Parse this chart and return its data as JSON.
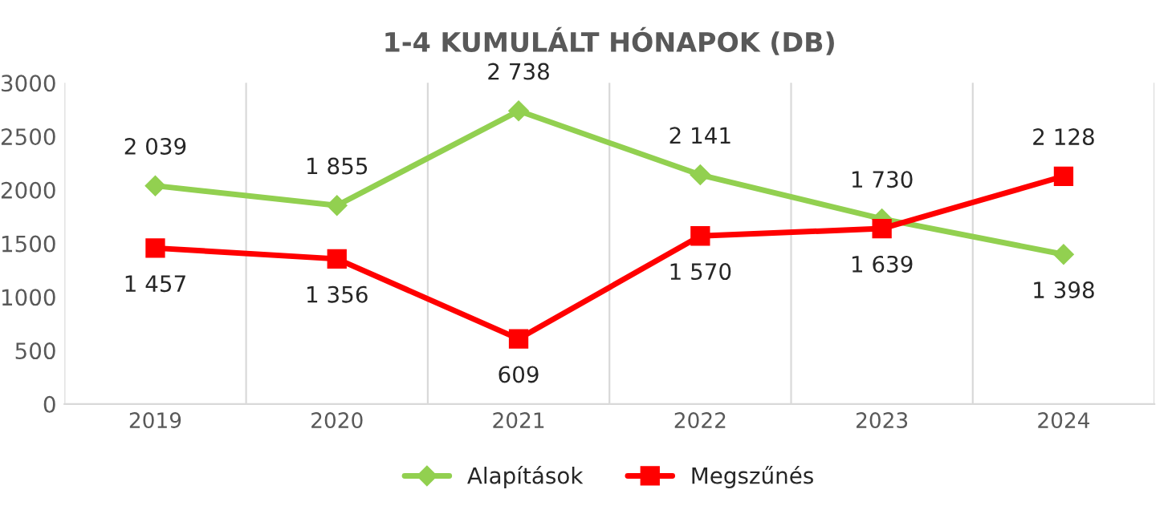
{
  "chart_data": {
    "type": "line",
    "title": "1-4 KUMULÁLT HÓNAPOK (DB)",
    "categories": [
      "2019",
      "2020",
      "2021",
      "2022",
      "2023",
      "2024"
    ],
    "series": [
      {
        "name": "Alapítások",
        "color": "#92d050",
        "marker": "diamond",
        "values": [
          2039,
          1855,
          2738,
          2141,
          1730,
          1398
        ],
        "value_labels": [
          "2 039",
          "1 855",
          "2 738",
          "2 141",
          "1 730",
          "1 398"
        ]
      },
      {
        "name": "Megszűnés",
        "color": "#ff0000",
        "marker": "square",
        "values": [
          1457,
          1356,
          609,
          1570,
          1639,
          2128
        ],
        "value_labels": [
          "1 457",
          "1 356",
          "609",
          "1 570",
          "1 639",
          "2 128"
        ]
      }
    ],
    "ylim": [
      0,
      3000
    ],
    "yticks": [
      0,
      500,
      1000,
      1500,
      2000,
      2500,
      3000
    ],
    "grid": "x",
    "legend": "bottom",
    "line_style": "solid"
  }
}
